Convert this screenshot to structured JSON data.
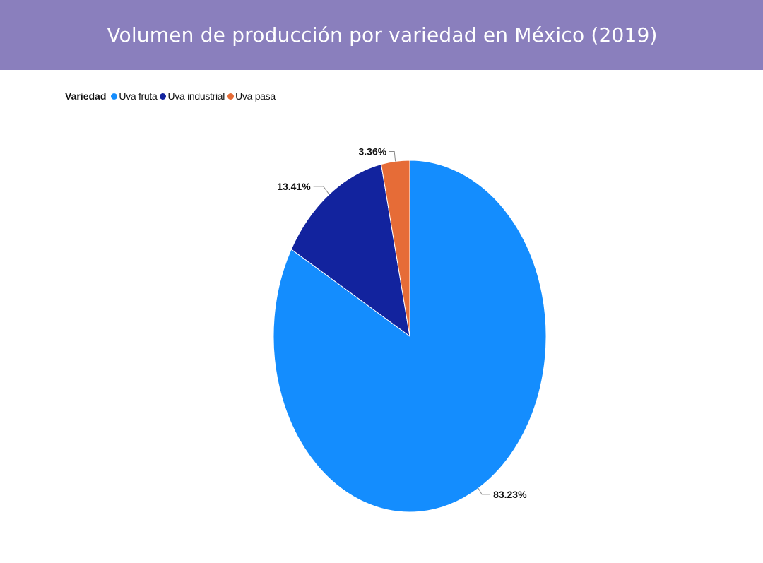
{
  "header": {
    "title": "Volumen de producción por variedad en México (2019)",
    "background": "#8a7fbd"
  },
  "legend": {
    "title": "Variedad",
    "placement": "top-left"
  },
  "chart_data": {
    "type": "pie",
    "title": "Volumen de producción por variedad en México (2019)",
    "legend_title": "Variedad",
    "categories": [
      "Uva fruta",
      "Uva industrial",
      "Uva pasa"
    ],
    "values": [
      83.23,
      13.41,
      3.36
    ],
    "labels": [
      "83.23%",
      "13.41%",
      "3.36%"
    ],
    "colors": [
      "#148dfe",
      "#12239e",
      "#e66c37"
    ],
    "unit": "%"
  }
}
